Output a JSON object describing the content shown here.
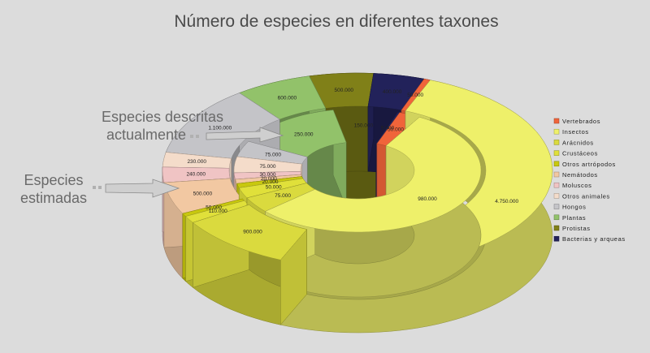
{
  "chart_data": {
    "type": "pie",
    "variant": "3d-doughnut-two-rings",
    "title": "Número de especies en diferentes taxones",
    "categories": [
      "Vertebrados",
      "Insectos",
      "Arácnidos",
      "Crustáceos",
      "Otros artrópodos",
      "Nemátodos",
      "Moluscos",
      "Otros animales",
      "Hongos",
      "Plantas",
      "Protistas",
      "Bacterias y arqueas"
    ],
    "series": [
      {
        "name": "Especies descritas actualmente",
        "values": [
          50000,
          980000,
          75000,
          50000,
          20000,
          20000,
          30000,
          75000,
          75000,
          250000,
          150000,
          5000
        ],
        "labels": [
          "50.000",
          "980.000",
          "75.000",
          "50.000",
          "20.000",
          "20.000",
          "30.000",
          "75.000",
          "75.000",
          "250.000",
          "150.000",
          "5.000"
        ]
      },
      {
        "name": "Especies estimadas",
        "values": [
          50000,
          4750000,
          900000,
          110000,
          50000,
          500000,
          240000,
          230000,
          1100000,
          600000,
          500000,
          400000
        ],
        "labels": [
          "50.000",
          "4.750.000",
          "900.000",
          "110.000",
          "50.000",
          "500.000",
          "240.000",
          "230.000",
          "1.100.000",
          "600.000",
          "500.000",
          "400.000"
        ]
      }
    ],
    "colors": [
      "#f0643a",
      "#eef06a",
      "#dada3e",
      "#e0e03a",
      "#c8c80e",
      "#f2c8a2",
      "#f0c4c4",
      "#f4dcca",
      "#c4c4c8",
      "#92c26a",
      "#808018",
      "#22225a"
    ],
    "callouts": [
      {
        "line1": "Especies descritas",
        "line2": "actualmente"
      },
      {
        "line1": "Especies",
        "line2": "estimadas"
      }
    ],
    "legend_position": "right"
  }
}
